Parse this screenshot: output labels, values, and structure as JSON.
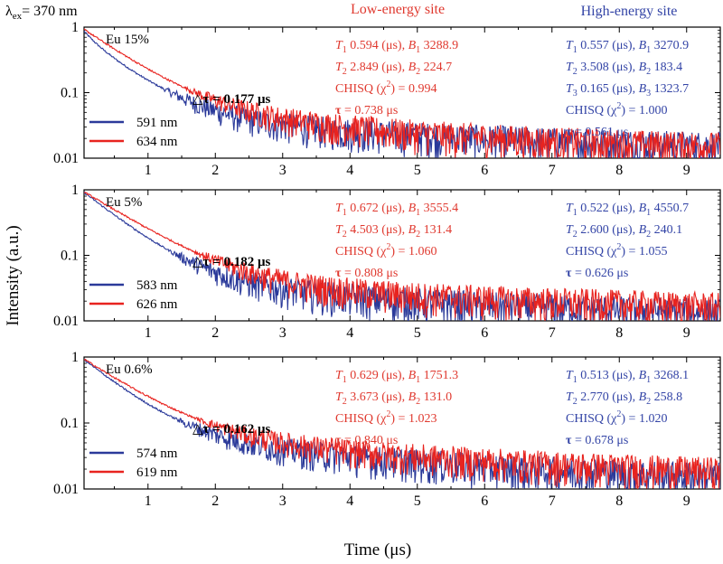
{
  "header": {
    "excitation_prefix": "λ",
    "excitation_sub": "ex",
    "excitation_value": "= 370 nm",
    "low_site_label": "Low-energy site",
    "high_site_label": "High-energy site"
  },
  "axes": {
    "ylabel": "Intensity (a.u.)",
    "xlabel": "Time (μs)"
  },
  "colors": {
    "blue": "#2b3a9a",
    "red": "#e8231f",
    "low_text": "#e0392f",
    "high_text": "#3344a6"
  },
  "chart_data": [
    {
      "type": "line",
      "title": "Eu 15%",
      "delta_tau": "△τ = 0.177 μs",
      "xlim": [
        0.05,
        9.5
      ],
      "ylim": [
        0.01,
        1
      ],
      "yscale": "log",
      "x_ticks": [
        "1",
        "2",
        "3",
        "4",
        "5",
        "6",
        "7",
        "8",
        "9"
      ],
      "y_ticks": [
        "0.01",
        "0.1",
        "1"
      ],
      "series": [
        {
          "name": "591 nm",
          "color": "#2b3a9a",
          "model": {
            "B": [
              3270.9,
              183.4,
              1323.7
            ],
            "T": [
              0.557,
              3.508,
              0.165
            ]
          },
          "floor": 0.0135
        },
        {
          "name": "634 nm",
          "color": "#e8231f",
          "model": {
            "B": [
              3288.9,
              224.7
            ],
            "T": [
              0.594,
              2.849
            ]
          },
          "floor": 0.0135
        }
      ],
      "low_fit": [
        "T1 0.594 (μs), B1 3288.9",
        "T2 2.849 (μs), B2 224.7",
        "CHISQ (χ2) = 0.994",
        "τ = 0.738 μs"
      ],
      "high_fit": [
        "T1 0.557 (μs), B1 3270.9",
        "T2 3.508 (μs), B2 183.4",
        "T3 0.165 (μs), B3 1323.7",
        "CHISQ (χ2) = 1.000",
        "τ = 0.561 μs"
      ]
    },
    {
      "type": "line",
      "title": "Eu 5%",
      "delta_tau": "△τ = 0.182 μs",
      "xlim": [
        0.05,
        9.5
      ],
      "ylim": [
        0.01,
        1
      ],
      "yscale": "log",
      "x_ticks": [
        "1",
        "2",
        "3",
        "4",
        "5",
        "6",
        "7",
        "8",
        "9"
      ],
      "y_ticks": [
        "0.01",
        "0.1",
        "1"
      ],
      "series": [
        {
          "name": "583 nm",
          "color": "#2b3a9a",
          "model": {
            "B": [
              4550.7,
              240.1
            ],
            "T": [
              0.522,
              2.6
            ]
          },
          "floor": 0.0128
        },
        {
          "name": "626 nm",
          "color": "#e8231f",
          "model": {
            "B": [
              3555.4,
              131.4
            ],
            "T": [
              0.672,
              4.503
            ]
          },
          "floor": 0.0128
        }
      ],
      "low_fit": [
        "T1 0.672 (μs), B1 3555.4",
        "T2 4.503 (μs), B2 131.4",
        "CHISQ (χ2) = 1.060",
        "τ = 0.808 μs"
      ],
      "high_fit": [
        "T1 0.522 (μs), B1 4550.7",
        "T2 2.600 (μs), B2 240.1",
        "CHISQ (χ2) = 1.055",
        "τ = 0.626 μs"
      ]
    },
    {
      "type": "line",
      "title": "Eu 0.6%",
      "delta_tau": "△τ = 0.162 μs",
      "xlim": [
        0.05,
        9.5
      ],
      "ylim": [
        0.01,
        1
      ],
      "yscale": "log",
      "x_ticks": [
        "1",
        "2",
        "3",
        "4",
        "5",
        "6",
        "7",
        "8",
        "9"
      ],
      "y_ticks": [
        "0.01",
        "0.1",
        "1"
      ],
      "series": [
        {
          "name": "574 nm",
          "color": "#2b3a9a",
          "model": {
            "B": [
              3268.1,
              258.8
            ],
            "T": [
              0.513,
              2.77
            ]
          },
          "floor": 0.0138
        },
        {
          "name": "619 nm",
          "color": "#e8231f",
          "model": {
            "B": [
              1751.3,
              131.0
            ],
            "T": [
              0.629,
              3.673
            ]
          },
          "floor": 0.0138
        }
      ],
      "low_fit": [
        "T1 0.629 (μs), B1 1751.3",
        "T2 3.673 (μs), B2 131.0",
        "CHISQ (χ2) = 1.023",
        "τ = 0.840 μs"
      ],
      "high_fit": [
        "T1 0.513 (μs), B1 3268.1",
        "T2 2.770 (μs), B2 258.8",
        "CHISQ (χ2) = 1.020",
        "τ = 0.678 μs"
      ]
    }
  ]
}
